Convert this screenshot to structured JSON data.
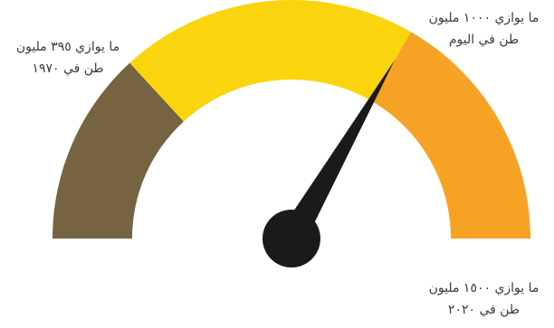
{
  "gauge": {
    "scale_max": 1500,
    "segments": [
      {
        "from": 0,
        "to": 395,
        "color": "#766341"
      },
      {
        "from": 395,
        "to": 1000,
        "color": "#fad40c"
      },
      {
        "from": 1000,
        "to": 1500,
        "color": "#f6a325"
      }
    ],
    "needle_value": 1000,
    "needle_color": "#1a1a1a"
  },
  "labels": {
    "low": {
      "line1": "ما يوازي ٣٩٥ مليون",
      "line2": "طن في ١٩٧٠"
    },
    "mid": {
      "line1": "ما يوازي ١٠٠٠ مليون",
      "line2": "طن في اليوم"
    },
    "high": {
      "line1": "ما يوازي ١٥٠٠ مليون",
      "line2": "طن في ٢٠٢٠"
    }
  }
}
